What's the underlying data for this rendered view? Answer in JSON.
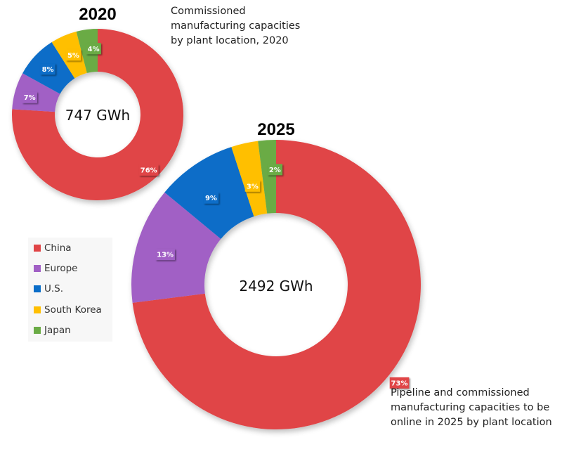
{
  "chart_data": [
    {
      "type": "pie",
      "variant": "donut",
      "title": "2020",
      "center_label": "747 GWh",
      "total_gwh": 747,
      "caption": [
        "Commissioned",
        "manufacturing capacities",
        "by plant location, 2020"
      ],
      "categories": [
        "China",
        "Europe",
        "U.S.",
        "South Korea",
        "Japan"
      ],
      "values": [
        76,
        7,
        8,
        5,
        4
      ],
      "labels": [
        "76%",
        "7%",
        "8%",
        "5%",
        "4%"
      ],
      "unit": "%"
    },
    {
      "type": "pie",
      "variant": "donut",
      "title": "2025",
      "center_label": "2492 GWh",
      "total_gwh": 2492,
      "caption": [
        "Pipeline and commissioned",
        "manufacturing capacities to be",
        "online in 2025 by plant location"
      ],
      "categories": [
        "China",
        "Europe",
        "U.S.",
        "South Korea",
        "Japan"
      ],
      "values": [
        73,
        13,
        9,
        3,
        2
      ],
      "labels": [
        "73%",
        "13%",
        "9%",
        "3%",
        "2%"
      ],
      "unit": "%"
    }
  ],
  "legend": {
    "placement": "left",
    "items": [
      {
        "label": "China",
        "color": "#E04446"
      },
      {
        "label": "Europe",
        "color": "#A160C5"
      },
      {
        "label": "U.S.",
        "color": "#0A6DC8"
      },
      {
        "label": "South Korea",
        "color": "#FFBF00"
      },
      {
        "label": "Japan",
        "color": "#6AAB45"
      }
    ]
  },
  "colors": {
    "China": "#E04446",
    "Europe": "#A160C5",
    "U.S.": "#0A6DC8",
    "South Korea": "#FFBF00",
    "Japan": "#6AAB45"
  }
}
